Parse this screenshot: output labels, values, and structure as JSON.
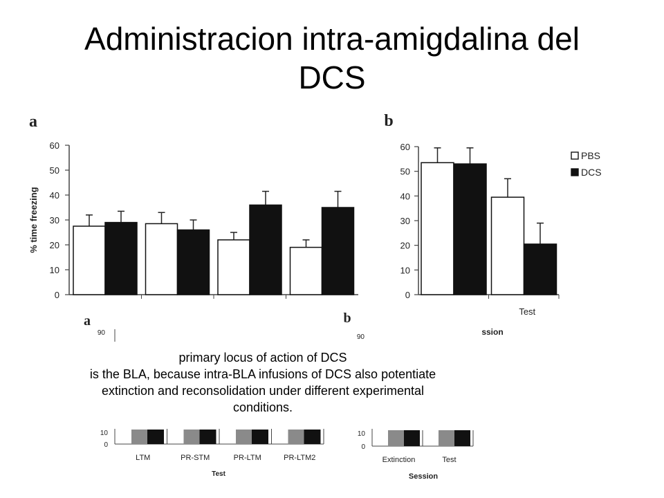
{
  "title_line1": "Administracion intra-amigdalina del",
  "title_line2": "DCS",
  "caption": {
    "line1": "primary locus of action of DCS",
    "line2": "is the BLA, because intra-BLA infusions of DCS also potentiate",
    "line3": "extinction and reconsolidation under different experimental",
    "line4": "conditions."
  },
  "colors": {
    "pbs": "#ffffff",
    "dcs": "#111111",
    "gray_bar": "#8a8a8a"
  },
  "chart_data": [
    {
      "type": "bar",
      "panel_label": "a",
      "ylabel": "% time freezing",
      "ylim": [
        0,
        60
      ],
      "yticks": [
        "0",
        "10",
        "20",
        "30",
        "40",
        "50",
        "60"
      ],
      "categories": [
        "",
        "",
        "",
        ""
      ],
      "series": [
        {
          "name": "PBS",
          "values": [
            27.5,
            28.5,
            22,
            19
          ],
          "errors": [
            4.5,
            4.5,
            3,
            3
          ]
        },
        {
          "name": "DCS",
          "values": [
            29,
            26,
            36,
            35
          ],
          "errors": [
            4.5,
            4,
            5.5,
            6.5
          ]
        }
      ]
    },
    {
      "type": "bar",
      "panel_label": "b",
      "ylabel": "",
      "ylim": [
        0,
        60
      ],
      "yticks": [
        "0",
        "10",
        "20",
        "30",
        "40",
        "50",
        "60"
      ],
      "categories": [
        "",
        "Test"
      ],
      "xlabel": "ssion",
      "legend": {
        "placement": "top-right",
        "items": [
          "PBS",
          "DCS"
        ]
      },
      "series": [
        {
          "name": "PBS",
          "values": [
            53.5,
            39.5
          ],
          "errors": [
            6,
            7.5
          ]
        },
        {
          "name": "DCS",
          "values": [
            53,
            20.5
          ],
          "errors": [
            6.5,
            8.5
          ]
        }
      ]
    },
    {
      "type": "bar",
      "panel_label": "a",
      "ylabel": "",
      "xlabel": "Test",
      "yticks_visible": [
        "0",
        "10",
        "90"
      ],
      "categories": [
        "LTM",
        "PR-STM",
        "PR-LTM",
        "PR-LTM2"
      ]
    },
    {
      "type": "bar",
      "panel_label": "b",
      "ylabel": "",
      "xlabel": "Session",
      "yticks_visible": [
        "0",
        "10",
        "90"
      ],
      "categories": [
        "Extinction",
        "Test"
      ]
    }
  ]
}
